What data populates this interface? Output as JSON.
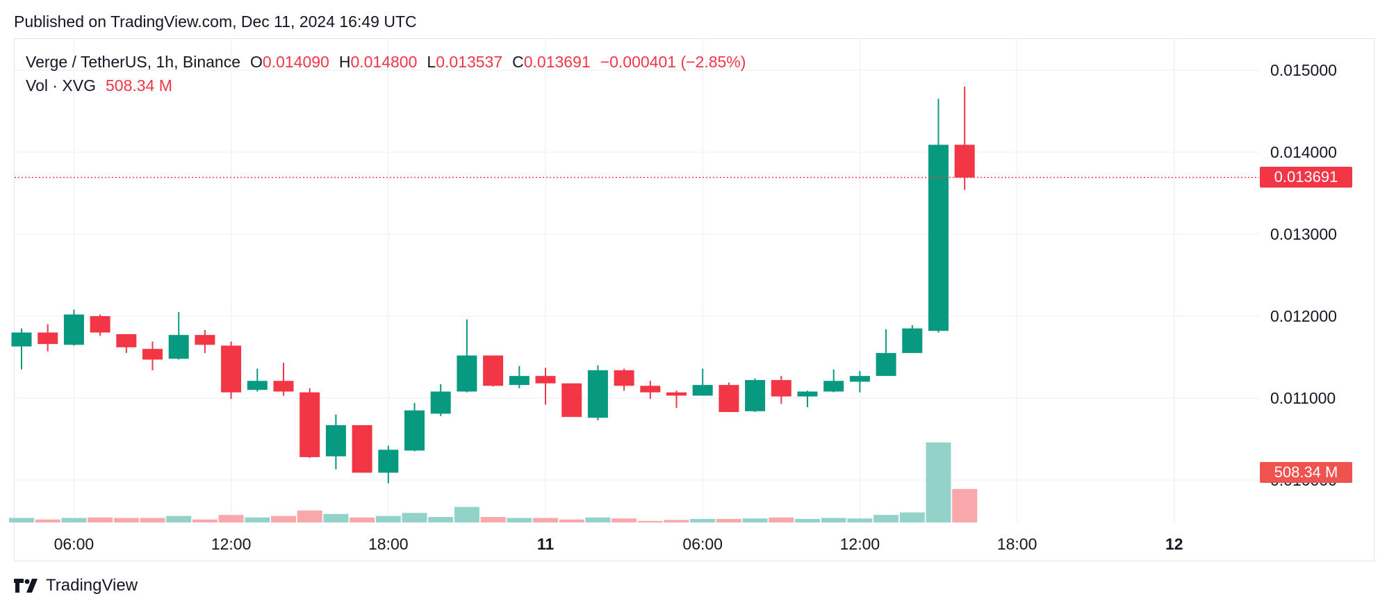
{
  "header": {
    "published": "Published on TradingView.com, Dec 11, 2024 16:49 UTC"
  },
  "legend": {
    "symbol": "Verge / TetherUS, 1h, Binance",
    "o_label": "O",
    "o_value": "0.014090",
    "h_label": "H",
    "h_value": "0.014800",
    "l_label": "L",
    "l_value": "0.013537",
    "c_label": "C",
    "c_value": "0.013691",
    "change": "−0.000401 (−2.85%)",
    "vol_label": "Vol · XVG",
    "vol_value": "508.34 M"
  },
  "price_axis": {
    "ticks": [
      "0.015000",
      "0.014000",
      "0.013000",
      "0.012000",
      "0.011000",
      "0.010000"
    ],
    "last_price_badge": "0.013691",
    "volume_badge": "508.34 M"
  },
  "time_axis": {
    "ticks": [
      "06:00",
      "12:00",
      "18:00",
      "11",
      "06:00",
      "12:00",
      "18:00",
      "12"
    ],
    "bold": [
      false,
      false,
      false,
      true,
      false,
      false,
      false,
      true
    ]
  },
  "brand": {
    "name": "TradingView"
  },
  "colors": {
    "up": "#089981",
    "down": "#f23645",
    "up_volume": "#92d2c8",
    "down_volume": "#f8a8ab",
    "grid": "#f0f3fa",
    "last_price_line": "#f23645"
  },
  "chart_data": {
    "type": "candlestick",
    "interval": "1h",
    "y_ticks": [
      0.01,
      0.011,
      0.012,
      0.013,
      0.014,
      0.015
    ],
    "ylim": [
      0.0095,
      0.0155
    ],
    "last_price": 0.013691,
    "time_labels": [
      {
        "label": "06:00",
        "index": 2
      },
      {
        "label": "12:00",
        "index": 8
      },
      {
        "label": "18:00",
        "index": 14
      },
      {
        "label": "11",
        "index": 20
      },
      {
        "label": "06:00",
        "index": 26
      },
      {
        "label": "12:00",
        "index": 32
      },
      {
        "label": "18:00",
        "index": 38
      },
      {
        "label": "12",
        "index": 44
      }
    ],
    "candles": [
      {
        "o": 0.01163,
        "h": 0.01185,
        "l": 0.01135,
        "c": 0.0118,
        "v": 9
      },
      {
        "o": 0.0118,
        "h": 0.0119,
        "l": 0.01157,
        "c": 0.01166,
        "v": 6
      },
      {
        "o": 0.01165,
        "h": 0.01208,
        "l": 0.01164,
        "c": 0.01202,
        "v": 9
      },
      {
        "o": 0.012,
        "h": 0.01202,
        "l": 0.01176,
        "c": 0.0118,
        "v": 10
      },
      {
        "o": 0.01178,
        "h": 0.01178,
        "l": 0.01155,
        "c": 0.01162,
        "v": 9
      },
      {
        "o": 0.0116,
        "h": 0.01169,
        "l": 0.01134,
        "c": 0.01147,
        "v": 9
      },
      {
        "o": 0.01148,
        "h": 0.01205,
        "l": 0.01147,
        "c": 0.01177,
        "v": 13
      },
      {
        "o": 0.01177,
        "h": 0.01183,
        "l": 0.01155,
        "c": 0.01165,
        "v": 6
      },
      {
        "o": 0.01164,
        "h": 0.01169,
        "l": 0.01099,
        "c": 0.01107,
        "v": 15
      },
      {
        "o": 0.0111,
        "h": 0.01136,
        "l": 0.01108,
        "c": 0.01121,
        "v": 10
      },
      {
        "o": 0.01121,
        "h": 0.01143,
        "l": 0.01103,
        "c": 0.01108,
        "v": 13
      },
      {
        "o": 0.01107,
        "h": 0.01112,
        "l": 0.01027,
        "c": 0.01028,
        "v": 24
      },
      {
        "o": 0.01029,
        "h": 0.0108,
        "l": 0.01013,
        "c": 0.01067,
        "v": 17
      },
      {
        "o": 0.01067,
        "h": 0.01067,
        "l": 0.01009,
        "c": 0.01009,
        "v": 10
      },
      {
        "o": 0.01009,
        "h": 0.01042,
        "l": 0.00996,
        "c": 0.01037,
        "v": 13
      },
      {
        "o": 0.01036,
        "h": 0.01094,
        "l": 0.01035,
        "c": 0.01085,
        "v": 19
      },
      {
        "o": 0.01081,
        "h": 0.01117,
        "l": 0.01078,
        "c": 0.01108,
        "v": 11
      },
      {
        "o": 0.01108,
        "h": 0.01196,
        "l": 0.01107,
        "c": 0.01152,
        "v": 31
      },
      {
        "o": 0.01152,
        "h": 0.01152,
        "l": 0.01114,
        "c": 0.01115,
        "v": 11
      },
      {
        "o": 0.01116,
        "h": 0.01139,
        "l": 0.01112,
        "c": 0.01127,
        "v": 9
      },
      {
        "o": 0.01127,
        "h": 0.01137,
        "l": 0.01092,
        "c": 0.01118,
        "v": 9
      },
      {
        "o": 0.01118,
        "h": 0.01118,
        "l": 0.01077,
        "c": 0.01077,
        "v": 6
      },
      {
        "o": 0.01076,
        "h": 0.0114,
        "l": 0.01073,
        "c": 0.01134,
        "v": 10
      },
      {
        "o": 0.01134,
        "h": 0.01136,
        "l": 0.01109,
        "c": 0.01115,
        "v": 8
      },
      {
        "o": 0.01115,
        "h": 0.01121,
        "l": 0.01099,
        "c": 0.01107,
        "v": 3
      },
      {
        "o": 0.01107,
        "h": 0.01109,
        "l": 0.01088,
        "c": 0.01103,
        "v": 5
      },
      {
        "o": 0.01103,
        "h": 0.01136,
        "l": 0.01103,
        "c": 0.01116,
        "v": 7
      },
      {
        "o": 0.01116,
        "h": 0.01119,
        "l": 0.01083,
        "c": 0.01083,
        "v": 7
      },
      {
        "o": 0.01084,
        "h": 0.01124,
        "l": 0.01083,
        "c": 0.01122,
        "v": 8
      },
      {
        "o": 0.01122,
        "h": 0.01127,
        "l": 0.01093,
        "c": 0.01102,
        "v": 10
      },
      {
        "o": 0.01102,
        "h": 0.01109,
        "l": 0.01089,
        "c": 0.01108,
        "v": 7
      },
      {
        "o": 0.01108,
        "h": 0.01135,
        "l": 0.01107,
        "c": 0.01121,
        "v": 9
      },
      {
        "o": 0.0112,
        "h": 0.01133,
        "l": 0.01107,
        "c": 0.01127,
        "v": 8
      },
      {
        "o": 0.01127,
        "h": 0.01184,
        "l": 0.01127,
        "c": 0.01155,
        "v": 15
      },
      {
        "o": 0.01155,
        "h": 0.01189,
        "l": 0.01155,
        "c": 0.01185,
        "v": 20
      },
      {
        "o": 0.01182,
        "h": 0.01465,
        "l": 0.0118,
        "c": 0.01409,
        "v": 160
      },
      {
        "o": 0.01409,
        "h": 0.0148,
        "l": 0.01354,
        "c": 0.01369,
        "v": 67
      }
    ]
  }
}
